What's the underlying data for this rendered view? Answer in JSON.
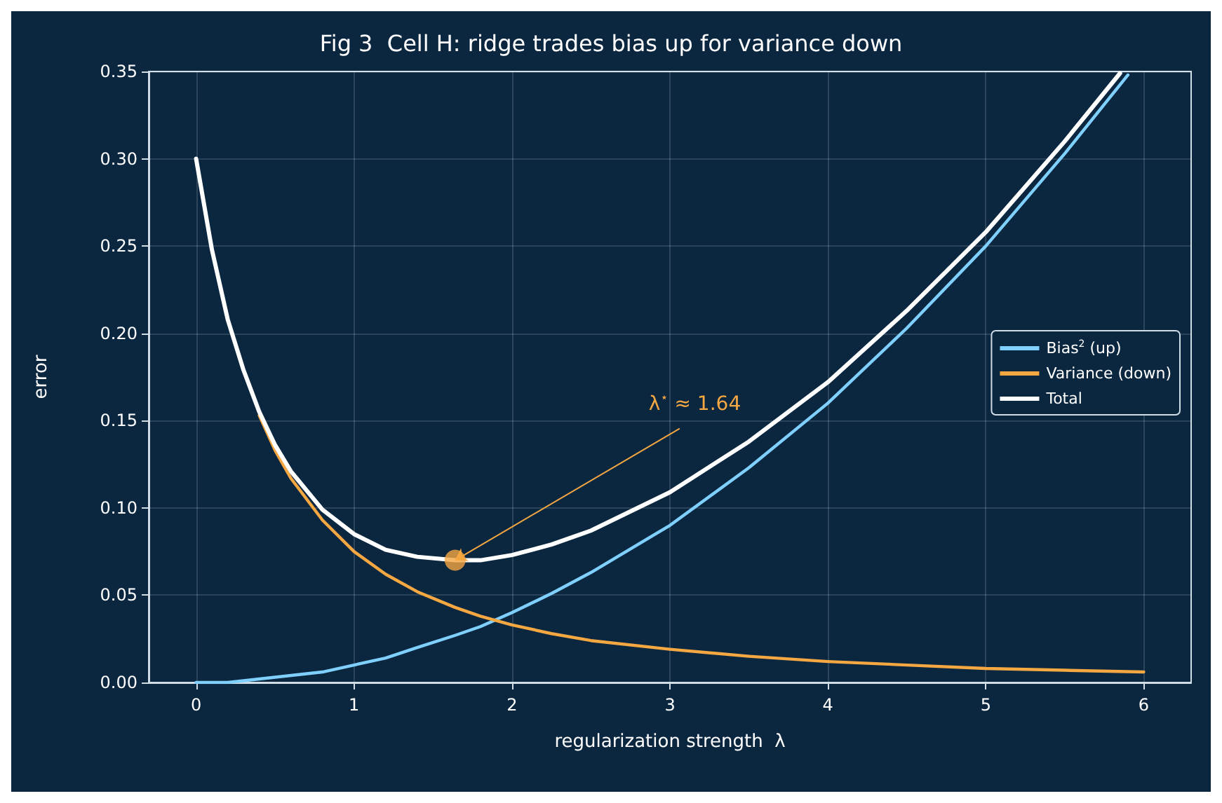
{
  "chart_data": {
    "type": "line",
    "title": "Fig 3  Cell H: ridge trades bias up for variance down",
    "xlabel": "regularization strength  λ",
    "ylabel": "error",
    "xlim": [
      -0.3,
      6.3
    ],
    "xticks": [
      0,
      1,
      2,
      3,
      4,
      5,
      6
    ],
    "ylim": [
      0,
      0.35
    ],
    "yticks": [
      {
        "value": 0,
        "label": "0.00"
      },
      {
        "value": 0.05,
        "label": "0.05"
      },
      {
        "value": 0.1,
        "label": "0.10"
      },
      {
        "value": 0.15,
        "label": "0.15"
      },
      {
        "value": 0.2,
        "label": "0.20"
      },
      {
        "value": 0.25,
        "label": "0.25"
      },
      {
        "value": 0.3,
        "label": "0.30"
      },
      {
        "value": 0.35,
        "label": "0.35"
      }
    ],
    "grid": true,
    "legend": "right",
    "marker": "none",
    "line_style": "solid",
    "series": [
      {
        "name": "Bias$^{2}$ (up)",
        "color": "#7fd0ff",
        "x": [
          0,
          0.1,
          0.2,
          0.3,
          0.4,
          0.5,
          0.6,
          0.8,
          1,
          1.2,
          1.4,
          1.64,
          1.8,
          2,
          2.25,
          2.5,
          3,
          3.5,
          4,
          4.5,
          5,
          5.5,
          5.9
        ],
        "values": [
          0,
          0,
          0,
          0.001,
          0.002,
          0.003,
          0.004,
          0.006,
          0.01,
          0.014,
          0.02,
          0.027,
          0.032,
          0.04,
          0.051,
          0.063,
          0.09,
          0.123,
          0.16,
          0.203,
          0.25,
          0.303,
          0.348
        ]
      },
      {
        "name": "Variance (down)",
        "color": "#f5a742",
        "x": [
          0.4,
          0.5,
          0.6,
          0.8,
          1,
          1.2,
          1.4,
          1.64,
          1.8,
          2,
          2.25,
          2.5,
          3,
          3.5,
          4,
          4.5,
          5,
          5.5,
          6
        ],
        "values": [
          0.153,
          0.133,
          0.117,
          0.093,
          0.075,
          0.062,
          0.052,
          0.043,
          0.038,
          0.033,
          0.028,
          0.024,
          0.019,
          0.015,
          0.012,
          0.01,
          0.008,
          0.007,
          0.006
        ]
      },
      {
        "name": "Total",
        "color": "#ffffff",
        "x": [
          0,
          0.1,
          0.2,
          0.3,
          0.4,
          0.5,
          0.6,
          0.8,
          1,
          1.2,
          1.4,
          1.64,
          1.8,
          2,
          2.25,
          2.5,
          3,
          3.5,
          4,
          4.5,
          5,
          5.5,
          5.85
        ],
        "values": [
          0.3,
          0.248,
          0.208,
          0.179,
          0.155,
          0.136,
          0.121,
          0.099,
          0.085,
          0.076,
          0.072,
          0.07,
          0.07,
          0.073,
          0.079,
          0.087,
          0.109,
          0.138,
          0.172,
          0.213,
          0.258,
          0.31,
          0.349
        ]
      },
      {
        "type": "scatter",
        "marker": "circle",
        "color": "#f5a742",
        "x": [
          1.64
        ],
        "values": [
          0.07
        ]
      }
    ],
    "annotations": [
      {
        "text": "λ$^{⋆}$ ≈ 1.64",
        "x": 1.64,
        "y": 0.07
      }
    ]
  }
}
